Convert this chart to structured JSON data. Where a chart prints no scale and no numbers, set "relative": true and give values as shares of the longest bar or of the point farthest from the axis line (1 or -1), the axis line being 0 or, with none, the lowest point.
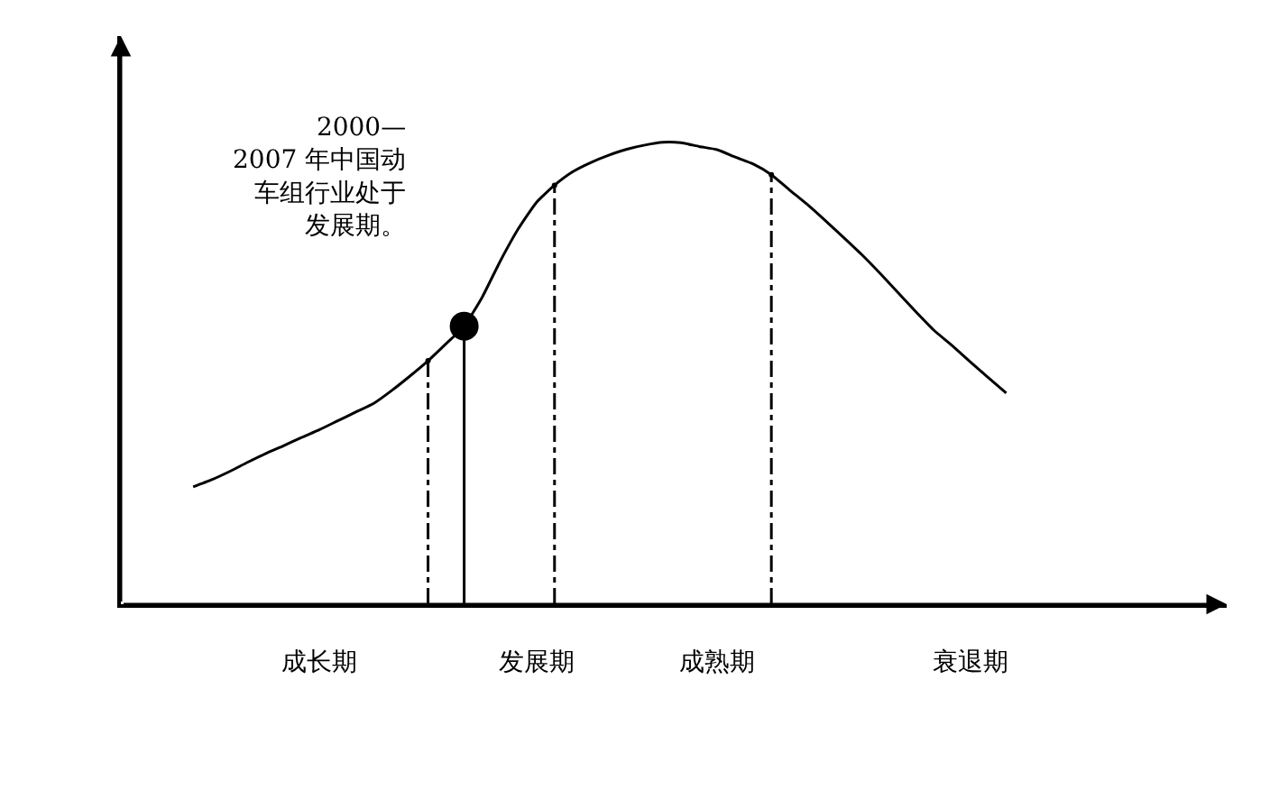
{
  "chart_data": {
    "type": "line",
    "relative": true,
    "marker": "none",
    "line_style": "solid",
    "categories": [
      null,
      null,
      null,
      null,
      null,
      null,
      null,
      "成长期",
      null,
      null,
      null,
      null,
      null,
      null,
      null,
      null,
      null,
      null,
      null,
      "发展期",
      null,
      null,
      null,
      null,
      null,
      null,
      null,
      null,
      null,
      "成熟期",
      null,
      null,
      null,
      null,
      null,
      null,
      null,
      null,
      null,
      null,
      null,
      null,
      null,
      "衰退期",
      null,
      null
    ],
    "series": [
      {
        "color": "#000000",
        "values": [
          0.254,
          0.269,
          0.287,
          0.307,
          0.326,
          0.343,
          0.361,
          0.378,
          0.397,
          0.416,
          0.435,
          0.463,
          0.494,
          0.527,
          0.564,
          0.602,
          0.665,
          0.743,
          0.813,
          0.87,
          0.907,
          0.936,
          0.956,
          0.972,
          0.985,
          0.994,
          1,
          0.999,
          0.991,
          0.984,
          0.968,
          0.953,
          0.93,
          0.897,
          0.865,
          0.83,
          0.794,
          0.757,
          0.717,
          0.675,
          0.633,
          0.593,
          0.56,
          0.525,
          0.491,
          0.457
        ]
      },
      {
        "type": "lollipop",
        "color": "#000000",
        "marker": "none",
        "line_style": "dashed",
        "values": [
          null,
          null,
          null,
          null,
          null,
          null,
          null,
          null,
          null,
          null,
          null,
          null,
          null,
          0.527,
          null,
          null,
          null,
          null,
          null,
          null,
          0.907,
          null,
          null,
          null,
          null,
          null,
          null,
          null,
          null,
          null,
          null,
          null,
          0.93,
          null,
          null,
          null,
          null,
          null,
          null,
          null,
          null,
          null,
          null,
          null,
          null,
          null
        ]
      },
      {
        "type": "lollipop",
        "color": "#000000",
        "marker": "circle",
        "line_style": "solid",
        "values": [
          null,
          null,
          null,
          null,
          null,
          null,
          null,
          null,
          null,
          null,
          null,
          null,
          null,
          null,
          null,
          0.602,
          null,
          null,
          null,
          null,
          null,
          null,
          null,
          null,
          null,
          null,
          null,
          null,
          null,
          null,
          null,
          null,
          null,
          null,
          null,
          null,
          null,
          null,
          null,
          null,
          null,
          null,
          null,
          null,
          null,
          null
        ]
      }
    ],
    "annotations": [
      "2000—2007 年中国动车组行业处于发展期。"
    ]
  }
}
